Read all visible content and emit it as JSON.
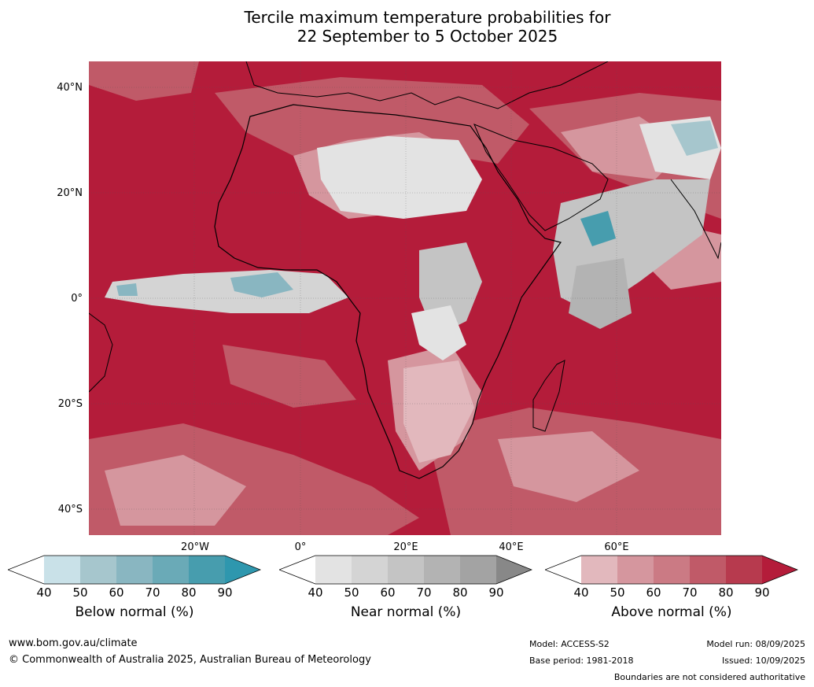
{
  "title_line1": "Tercile maximum temperature probabilities for",
  "title_line2": "22 September to 5 October 2025",
  "lat_labels": [
    "40°N",
    "20°N",
    "0°",
    "20°S",
    "40°S"
  ],
  "lon_labels": [
    "20°W",
    "0°",
    "20°E",
    "40°E",
    "60°E"
  ],
  "colorbars": [
    {
      "caption": "Below normal (%)",
      "ticks": [
        "40",
        "50",
        "60",
        "70",
        "80",
        "90"
      ],
      "colors": [
        "#ffffff",
        "#c9e1e8",
        "#a6c6cd",
        "#89b6c1",
        "#6aaab7",
        "#479dae",
        "#2e97ae"
      ]
    },
    {
      "caption": "Near normal (%)",
      "ticks": [
        "40",
        "50",
        "60",
        "70",
        "80",
        "90"
      ],
      "colors": [
        "#ffffff",
        "#e3e3e3",
        "#d4d4d4",
        "#c4c4c4",
        "#b3b3b3",
        "#a3a3a3",
        "#888888"
      ]
    },
    {
      "caption": "Above normal (%)",
      "ticks": [
        "40",
        "50",
        "60",
        "70",
        "80",
        "90"
      ],
      "colors": [
        "#ffffff",
        "#e2b8bd",
        "#d5969e",
        "#cb7a84",
        "#c05a68",
        "#b73a4e",
        "#b41c3a"
      ]
    }
  ],
  "footer": {
    "site": "www.bom.gov.au/climate",
    "copyright": "© Commonwealth of Australia 2025, Australian Bureau of Meteorology",
    "model": "Model: ACCESS-S2",
    "base_period": "Base period: 1981-2018",
    "model_run": "Model run: 08/09/2025",
    "issued": "Issued: 10/09/2025",
    "disclaimer": "Boundaries are not considered authoritative"
  }
}
